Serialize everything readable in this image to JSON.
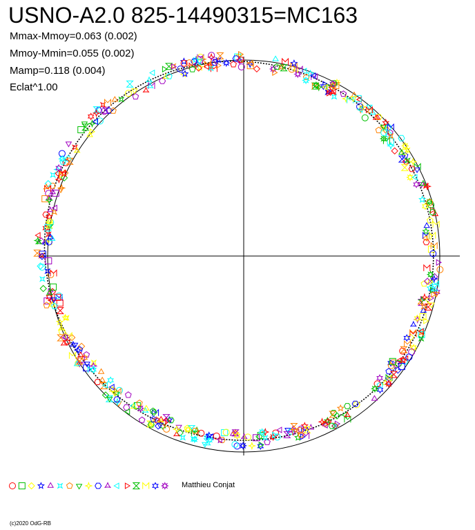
{
  "chart_data": {
    "type": "scatter",
    "title": "USNO-A2.0 825-14490315=MC163",
    "stats": [
      "Mmax-Mmoy=0.063 (0.002)",
      "Mmoy-Mmin=0.055 (0.002)",
      "Mamp=0.118 (0.004)",
      "Eclat^1.00"
    ],
    "legend_observer": "Matthieu Conjat",
    "credit": "(c)2020 OdG-RB",
    "axes": "polar phase diagram, crosshair at center, no tick labels",
    "reference_circle": "circle of mean brightness",
    "mean_curve": "black dotted curve (Mmoy) slightly offset from the circle",
    "palette": [
      "#ff0000",
      "#00c000",
      "#ffff00",
      "#0000ff",
      "#a000c0",
      "#00ffff",
      "#ff8000"
    ],
    "marker_shapes": [
      "circle",
      "square",
      "diamond",
      "star",
      "triangle-up",
      "cross",
      "pentagon",
      "triangle-down",
      "plus",
      "hexagon",
      "trefoil",
      "triangle-left",
      "triangle-right",
      "hourglass",
      "m-shape",
      "star6",
      "star8"
    ]
  }
}
